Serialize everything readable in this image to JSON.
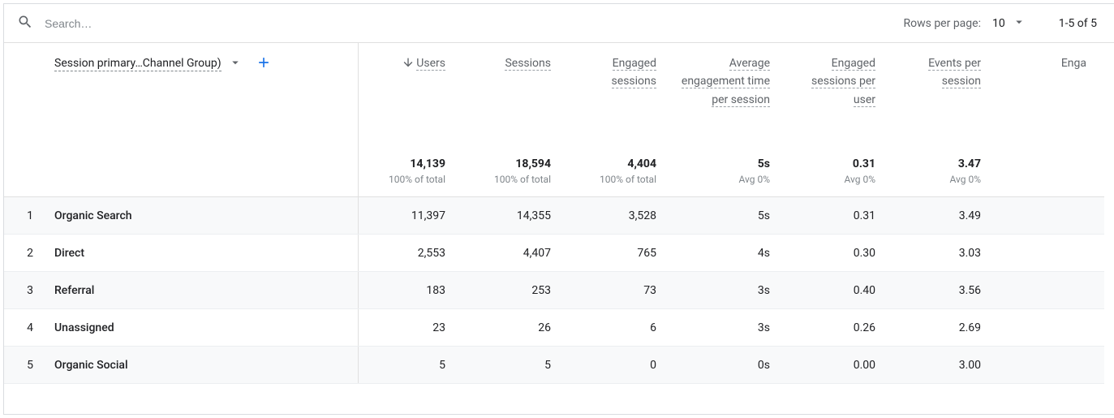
{
  "toolbar": {
    "search_placeholder": "Search…",
    "rows_per_page_label": "Rows per page:",
    "rows_per_page_value": "10",
    "range_text": "1-5 of 5"
  },
  "dimension": {
    "label": "Session primary…Channel Group)"
  },
  "columns": [
    {
      "label": "Users",
      "sorted": true
    },
    {
      "label": "Sessions"
    },
    {
      "label": "Engaged sessions"
    },
    {
      "label": "Average engagement time per session"
    },
    {
      "label": "Engaged sessions per user"
    },
    {
      "label": "Events per session"
    },
    {
      "label": "Enga"
    }
  ],
  "totals": [
    {
      "value": "14,139",
      "sub": "100% of total"
    },
    {
      "value": "18,594",
      "sub": "100% of total"
    },
    {
      "value": "4,404",
      "sub": "100% of total"
    },
    {
      "value": "5s",
      "sub": "Avg 0%"
    },
    {
      "value": "0.31",
      "sub": "Avg 0%"
    },
    {
      "value": "3.47",
      "sub": "Avg 0%"
    },
    {
      "value": "",
      "sub": ""
    }
  ],
  "rows": [
    {
      "idx": "1",
      "dim": "Organic Search",
      "cells": [
        "11,397",
        "14,355",
        "3,528",
        "5s",
        "0.31",
        "3.49",
        ""
      ]
    },
    {
      "idx": "2",
      "dim": "Direct",
      "cells": [
        "2,553",
        "4,407",
        "765",
        "4s",
        "0.30",
        "3.03",
        ""
      ]
    },
    {
      "idx": "3",
      "dim": "Referral",
      "cells": [
        "183",
        "253",
        "73",
        "3s",
        "0.40",
        "3.56",
        ""
      ]
    },
    {
      "idx": "4",
      "dim": "Unassigned",
      "cells": [
        "23",
        "26",
        "6",
        "3s",
        "0.26",
        "2.69",
        ""
      ]
    },
    {
      "idx": "5",
      "dim": "Organic Social",
      "cells": [
        "5",
        "5",
        "0",
        "0s",
        "0.00",
        "3.00",
        ""
      ]
    }
  ],
  "colors": {
    "text_primary": "#202124",
    "text_secondary": "#5f6368",
    "text_muted": "#80868b",
    "accent": "#1a73e8",
    "border": "#e0e0e0",
    "row_stripe": "#f8f9fa",
    "background": "#ffffff"
  }
}
